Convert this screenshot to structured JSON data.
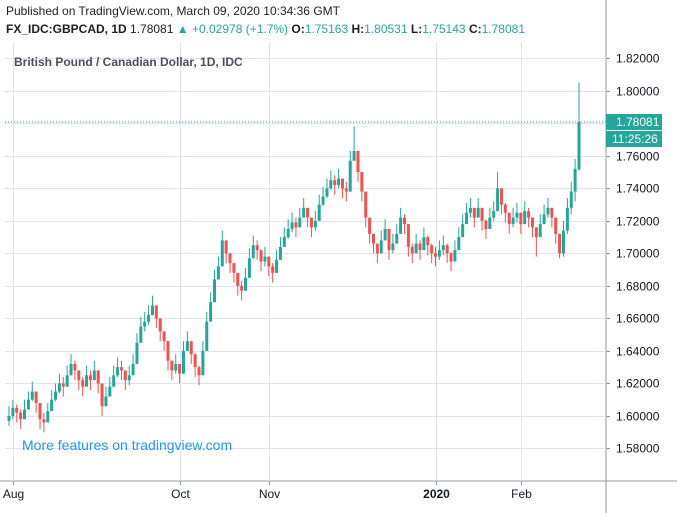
{
  "header": {
    "published": "Published on TradingView.com, March 09, 2020 10:34:36 GMT",
    "symbol": "FX_IDC:GBPCAD, 1D",
    "last": "1.78081",
    "change": "▲ +0.02978 (+1.7%)",
    "o_label": "O:",
    "o_val": "1.75163",
    "h_label": "H:",
    "h_val": "1.80531",
    "l_label": "L:",
    "l_val": "1.75143",
    "c_label": "C:",
    "c_val": "1.78081"
  },
  "colors": {
    "up": "#26a69a",
    "down": "#ef5350",
    "grid": "#e0e3eb",
    "accent": "#2196f3"
  },
  "chart_data": {
    "type": "candlestick",
    "title": "British Pound / Canadian Dollar, 1D, IDC",
    "watermark": "More features on tradingview.com",
    "ylim": [
      1.56,
      1.83
    ],
    "yticks": [
      "1.58000",
      "1.60000",
      "1.62000",
      "1.64000",
      "1.66000",
      "1.68000",
      "1.70000",
      "1.72000",
      "1.74000",
      "1.76000",
      "1.78000",
      "1.80000",
      "1.82000"
    ],
    "xlabels": [
      {
        "label": "Aug",
        "t": 1
      },
      {
        "label": "Oct",
        "t": 44
      },
      {
        "label": "Nov",
        "t": 67
      },
      {
        "label": "2020",
        "t": 110,
        "bold": true
      },
      {
        "label": "Feb",
        "t": 132
      }
    ],
    "last_price": "1.78081",
    "countdown": "11:25:26",
    "closes": [
      1.6,
      1.605,
      1.602,
      1.598,
      1.604,
      1.61,
      1.615,
      1.608,
      1.598,
      1.596,
      1.603,
      1.61,
      1.615,
      1.62,
      1.618,
      1.625,
      1.632,
      1.628,
      1.622,
      1.618,
      1.625,
      1.622,
      1.628,
      1.62,
      1.606,
      1.612,
      1.618,
      1.625,
      1.63,
      1.628,
      1.622,
      1.625,
      1.632,
      1.645,
      1.655,
      1.658,
      1.662,
      1.668,
      1.66,
      1.652,
      1.646,
      1.634,
      1.628,
      1.632,
      1.626,
      1.64,
      1.646,
      1.638,
      1.63,
      1.625,
      1.64,
      1.658,
      1.67,
      1.684,
      1.692,
      1.708,
      1.7,
      1.694,
      1.688,
      1.68,
      1.677,
      1.685,
      1.697,
      1.705,
      1.702,
      1.695,
      1.698,
      1.692,
      1.688,
      1.696,
      1.704,
      1.71,
      1.715,
      1.719,
      1.716,
      1.722,
      1.728,
      1.722,
      1.716,
      1.72,
      1.73,
      1.735,
      1.74,
      1.745,
      1.742,
      1.746,
      1.74,
      1.738,
      1.757,
      1.763,
      1.75,
      1.738,
      1.722,
      1.712,
      1.706,
      1.7,
      1.708,
      1.715,
      1.702,
      1.706,
      1.712,
      1.722,
      1.718,
      1.704,
      1.7,
      1.706,
      1.702,
      1.71,
      1.705,
      1.7,
      1.698,
      1.702,
      1.705,
      1.7,
      1.695,
      1.702,
      1.71,
      1.718,
      1.725,
      1.728,
      1.722,
      1.728,
      1.72,
      1.715,
      1.722,
      1.726,
      1.74,
      1.73,
      1.725,
      1.718,
      1.722,
      1.725,
      1.718,
      1.726,
      1.722,
      1.716,
      1.71,
      1.718,
      1.724,
      1.728,
      1.722,
      1.712,
      1.7,
      1.714,
      1.728,
      1.738,
      1.752,
      1.781
    ],
    "highs": [
      1.606,
      1.61,
      1.607,
      1.604,
      1.61,
      1.615,
      1.621,
      1.614,
      1.605,
      1.602,
      1.608,
      1.616,
      1.62,
      1.626,
      1.624,
      1.631,
      1.638,
      1.634,
      1.628,
      1.624,
      1.631,
      1.628,
      1.634,
      1.626,
      1.612,
      1.618,
      1.624,
      1.631,
      1.636,
      1.634,
      1.628,
      1.631,
      1.638,
      1.651,
      1.661,
      1.664,
      1.668,
      1.674,
      1.666,
      1.658,
      1.652,
      1.64,
      1.634,
      1.638,
      1.632,
      1.646,
      1.652,
      1.644,
      1.636,
      1.631,
      1.646,
      1.664,
      1.676,
      1.69,
      1.698,
      1.714,
      1.706,
      1.7,
      1.694,
      1.686,
      1.683,
      1.691,
      1.703,
      1.711,
      1.708,
      1.701,
      1.704,
      1.698,
      1.694,
      1.702,
      1.71,
      1.716,
      1.721,
      1.725,
      1.722,
      1.728,
      1.734,
      1.728,
      1.722,
      1.726,
      1.736,
      1.741,
      1.746,
      1.751,
      1.748,
      1.752,
      1.746,
      1.744,
      1.763,
      1.778,
      1.756,
      1.744,
      1.728,
      1.718,
      1.712,
      1.706,
      1.714,
      1.721,
      1.708,
      1.712,
      1.718,
      1.728,
      1.724,
      1.71,
      1.706,
      1.712,
      1.708,
      1.716,
      1.711,
      1.706,
      1.704,
      1.708,
      1.711,
      1.706,
      1.701,
      1.708,
      1.716,
      1.724,
      1.731,
      1.734,
      1.728,
      1.734,
      1.726,
      1.721,
      1.728,
      1.732,
      1.75,
      1.736,
      1.731,
      1.724,
      1.728,
      1.731,
      1.724,
      1.732,
      1.728,
      1.722,
      1.716,
      1.724,
      1.73,
      1.734,
      1.728,
      1.718,
      1.706,
      1.72,
      1.734,
      1.744,
      1.758,
      1.805
    ],
    "lows": [
      1.594,
      1.598,
      1.596,
      1.592,
      1.598,
      1.604,
      1.609,
      1.602,
      1.592,
      1.59,
      1.597,
      1.604,
      1.609,
      1.614,
      1.612,
      1.619,
      1.626,
      1.622,
      1.616,
      1.612,
      1.619,
      1.616,
      1.622,
      1.614,
      1.6,
      1.606,
      1.612,
      1.619,
      1.624,
      1.622,
      1.616,
      1.619,
      1.626,
      1.639,
      1.649,
      1.652,
      1.656,
      1.662,
      1.654,
      1.646,
      1.64,
      1.628,
      1.622,
      1.626,
      1.62,
      1.634,
      1.64,
      1.632,
      1.624,
      1.619,
      1.634,
      1.652,
      1.664,
      1.678,
      1.686,
      1.702,
      1.694,
      1.688,
      1.682,
      1.674,
      1.671,
      1.679,
      1.691,
      1.699,
      1.696,
      1.689,
      1.692,
      1.686,
      1.682,
      1.69,
      1.698,
      1.704,
      1.709,
      1.713,
      1.71,
      1.716,
      1.722,
      1.716,
      1.71,
      1.714,
      1.724,
      1.729,
      1.734,
      1.739,
      1.736,
      1.74,
      1.734,
      1.732,
      1.751,
      1.757,
      1.744,
      1.732,
      1.716,
      1.706,
      1.7,
      1.694,
      1.702,
      1.709,
      1.696,
      1.7,
      1.706,
      1.716,
      1.712,
      1.698,
      1.694,
      1.7,
      1.696,
      1.704,
      1.699,
      1.694,
      1.692,
      1.696,
      1.699,
      1.694,
      1.689,
      1.696,
      1.704,
      1.712,
      1.719,
      1.722,
      1.716,
      1.722,
      1.714,
      1.709,
      1.716,
      1.72,
      1.734,
      1.724,
      1.719,
      1.712,
      1.716,
      1.719,
      1.712,
      1.72,
      1.716,
      1.71,
      1.698,
      1.712,
      1.718,
      1.722,
      1.716,
      1.706,
      1.697,
      1.698,
      1.712,
      1.724,
      1.732,
      1.751
    ]
  }
}
